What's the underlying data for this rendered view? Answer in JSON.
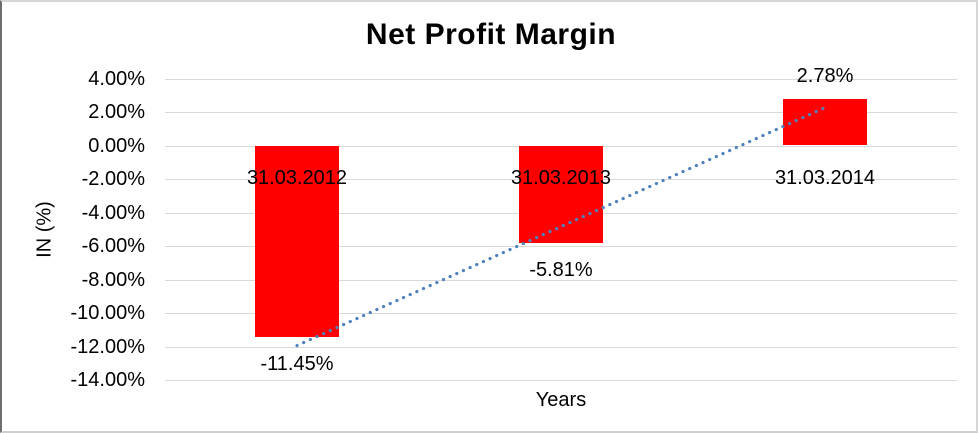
{
  "chart_data": {
    "type": "bar",
    "title": "Net Profit Margin",
    "categories": [
      "31.03.2012",
      "31.03.2013",
      "31.03.2014"
    ],
    "values": [
      -11.45,
      -5.81,
      2.78
    ],
    "data_labels": [
      "-11.45%",
      "-5.81%",
      "2.78%"
    ],
    "xlabel": "Years",
    "ylabel": "IN (%)",
    "ylim": [
      -14,
      4
    ],
    "ytick_step": 2,
    "ytick_labels": [
      "4.00%",
      "2.00%",
      "0.00%",
      "-2.00%",
      "-4.00%",
      "-6.00%",
      "-8.00%",
      "-10.00%",
      "-12.00%",
      "-14.00%"
    ],
    "grid": true,
    "legend": "none",
    "bar_color": "#ff0000",
    "gridline_color": "#d9d9d9",
    "text_color": "#000000",
    "trendline": {
      "type": "linear",
      "style": "dotted",
      "color": "#4f81bd",
      "start": {
        "category_index": 0,
        "value": -11.94
      },
      "end": {
        "category_index": 2,
        "value": 2.29
      }
    }
  }
}
